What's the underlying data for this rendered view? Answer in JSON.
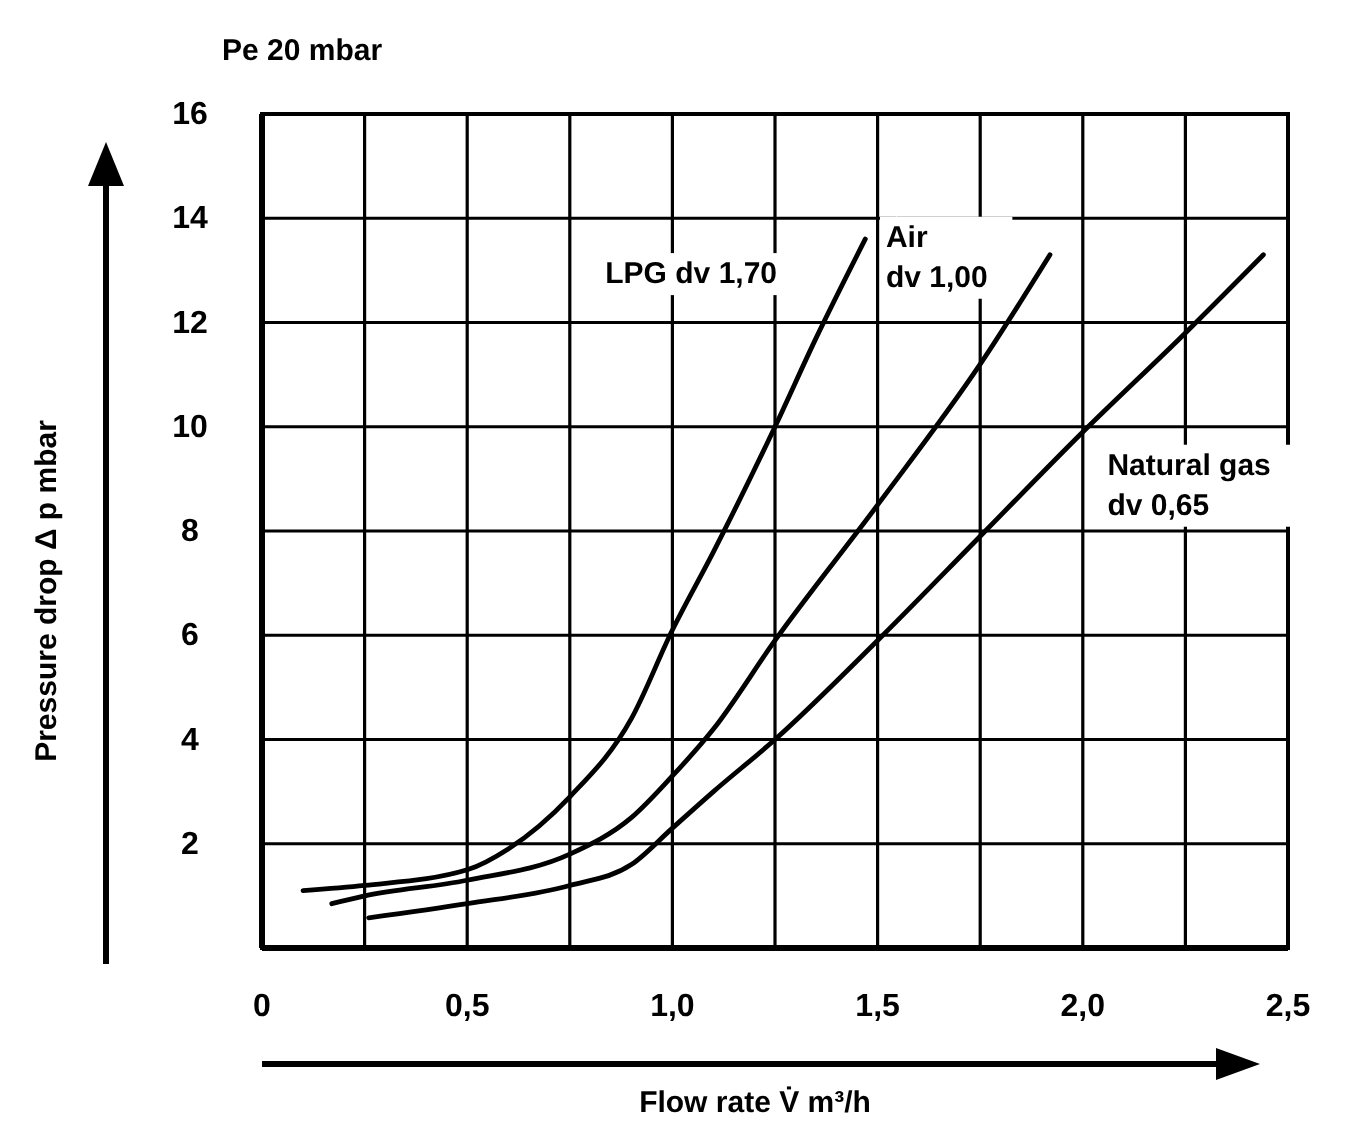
{
  "chart_data": {
    "type": "line",
    "title": "Pe 20 mbar",
    "xlabel": "Flow rate  V̇ m³/h",
    "ylabel": "Pressure drop   Δ p mbar",
    "xlim": [
      0,
      2.5
    ],
    "ylim": [
      0,
      16
    ],
    "xticks": [
      {
        "value": 0,
        "label": "0"
      },
      {
        "value": 0.25,
        "label": null
      },
      {
        "value": 0.5,
        "label": "0,5"
      },
      {
        "value": 0.75,
        "label": null
      },
      {
        "value": 1,
        "label": "1,0"
      },
      {
        "value": 1.25,
        "label": null
      },
      {
        "value": 1.5,
        "label": "1,5"
      },
      {
        "value": 1.75,
        "label": null
      },
      {
        "value": 2,
        "label": "2,0"
      },
      {
        "value": 2.25,
        "label": null
      },
      {
        "value": 2.5,
        "label": "2,5"
      }
    ],
    "yticks": [
      2,
      4,
      6,
      8,
      10,
      12,
      14,
      16
    ],
    "grid": true,
    "marker": "none",
    "line_style": "solid",
    "series": [
      {
        "name": "LPG dv 1,70",
        "color": "#000000",
        "x": [
          0.1,
          0.25,
          0.5,
          0.6,
          0.75,
          0.9,
          1,
          1.1,
          1.25,
          1.35,
          1.47
        ],
        "values": [
          1.1,
          1.2,
          1.5,
          1.9,
          2.9,
          4.4,
          6.1,
          7.6,
          10,
          11.7,
          13.6
        ]
      },
      {
        "name": "Air\ndv 1,00",
        "color": "#000000",
        "x": [
          0.17,
          0.25,
          0.5,
          0.75,
          0.9,
          1,
          1.1,
          1.25,
          1.5,
          1.75,
          1.92
        ],
        "values": [
          0.85,
          1,
          1.3,
          1.8,
          2.5,
          3.3,
          4.2,
          5.9,
          8.5,
          11.2,
          13.3
        ]
      },
      {
        "name": "Natural gas\ndv 0,65",
        "color": "#000000",
        "x": [
          0.26,
          0.5,
          0.75,
          0.9,
          1,
          1.1,
          1.25,
          1.5,
          1.75,
          2,
          2.25,
          2.44
        ],
        "values": [
          0.58,
          0.85,
          1.2,
          1.6,
          2.3,
          3,
          4,
          5.9,
          7.9,
          9.9,
          11.8,
          13.3
        ]
      }
    ]
  }
}
